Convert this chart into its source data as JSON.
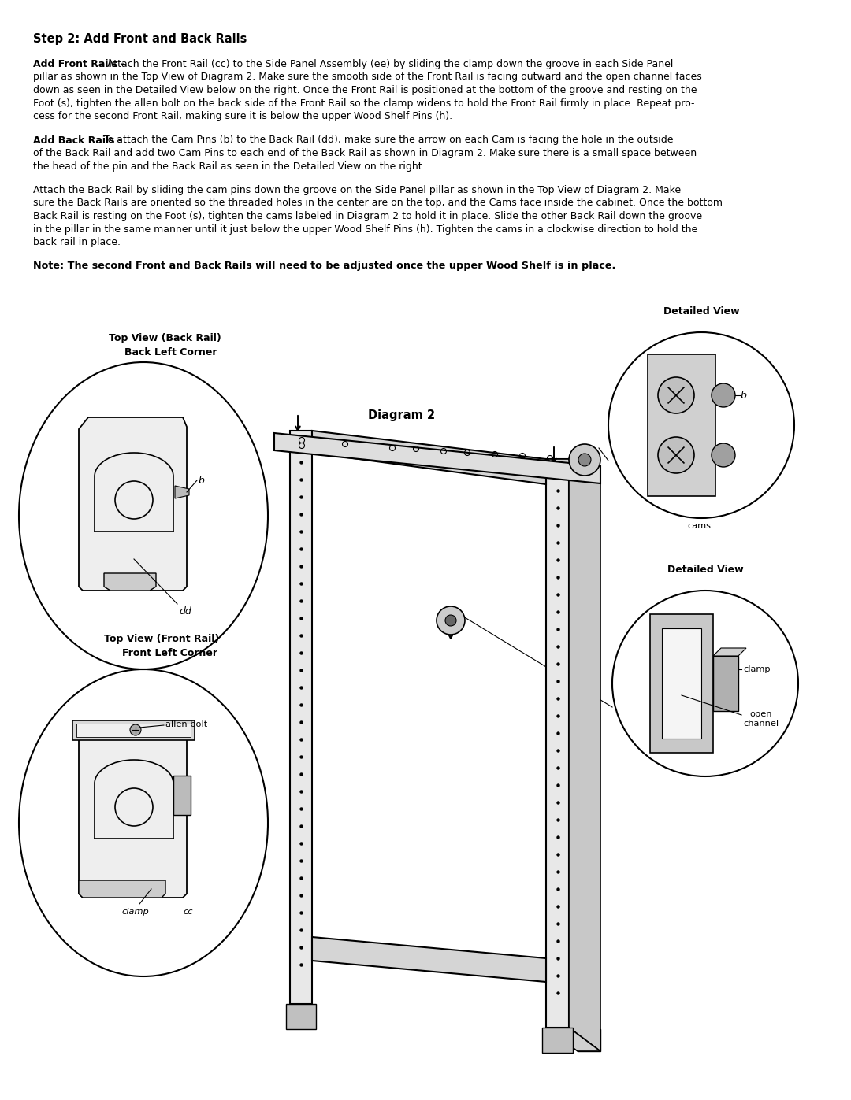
{
  "bg": "#ffffff",
  "tc": "#000000",
  "lc": "#000000",
  "title": "Step 2: Add Front and Back Rails",
  "p1_bold": "Add Front Rails -",
  "p1_lines": [
    "Attach the Front Rail (cc) to the Side Panel Assembly (ee) by sliding the clamp down the groove in each Side Panel",
    "pillar as shown in the Top View of Diagram 2. Make sure the smooth side of the Front Rail is facing outward and the open channel faces",
    "down as seen in the Detailed View below on the right. Once the Front Rail is positioned at the bottom of the groove and resting on the",
    "Foot (s), tighten the allen bolt on the back side of the Front Rail so the clamp widens to hold the Front Rail firmly in place. Repeat pro-",
    "cess for the second Front Rail, making sure it is below the upper Wood Shelf Pins (h)."
  ],
  "p2_bold": "Add Back Rails -",
  "p2_lines": [
    "To attach the Cam Pins (b) to the Back Rail (dd), make sure the arrow on each Cam is facing the hole in the outside",
    "of the Back Rail and add two Cam Pins to each end of the Back Rail as shown in Diagram 2. Make sure there is a small space between",
    "the head of the pin and the Back Rail as seen in the Detailed View on the right."
  ],
  "p3_lines": [
    "Attach the Back Rail by sliding the cam pins down the groove on the Side Panel pillar as shown in the Top View of Diagram 2. Make",
    "sure the Back Rails are oriented so the threaded holes in the center are on the top, and the Cams face inside the cabinet. Once the bottom",
    "Back Rail is resting on the Foot (s), tighten the cams labeled in Diagram 2 to hold it in place. Slide the other Back Rail down the groove",
    "in the pillar in the same manner until it just below the upper Wood Shelf Pins (h). Tighten the cams in a clockwise direction to hold the",
    "back rail in place."
  ],
  "note": "Note: The second Front and Back Rails will need to be adjusted once the upper Wood Shelf is in place.",
  "fs_title": 10.5,
  "fs_body": 9.0,
  "fs_note": 9.2,
  "fs_label": 9.0,
  "fs_small": 8.2
}
